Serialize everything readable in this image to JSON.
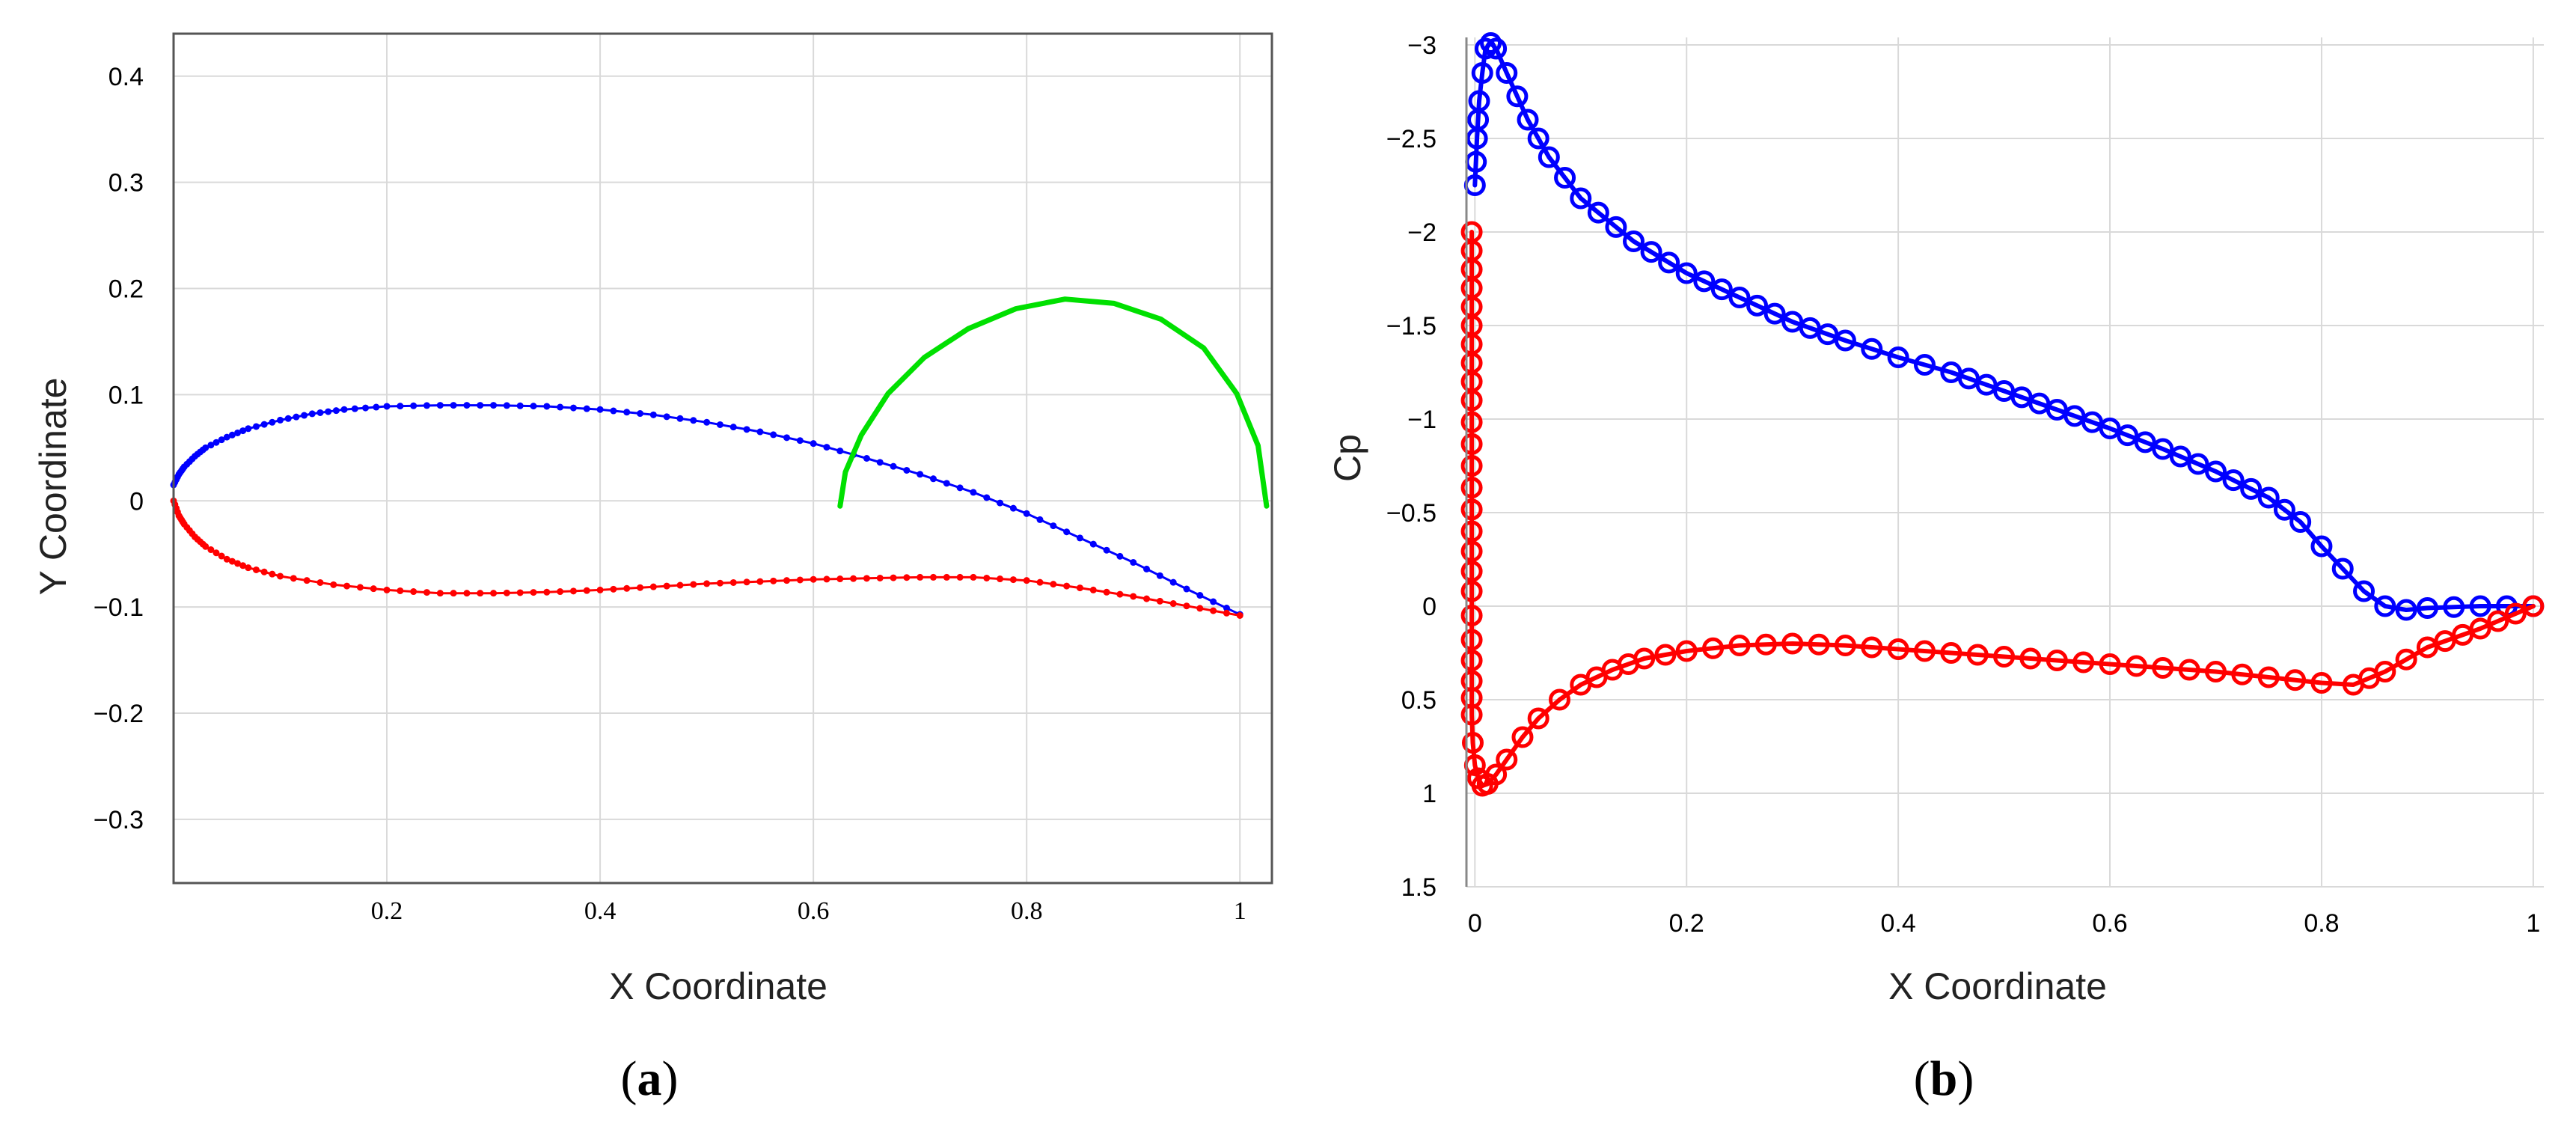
{
  "chart_data": [
    {
      "type": "line",
      "panel_label": "a",
      "xlabel": "X Coordinate",
      "ylabel": "Y Coordinate",
      "xlim": [
        0,
        1.03
      ],
      "ylim": [
        -0.36,
        0.44
      ],
      "xticks": [
        0.2,
        0.4,
        0.6,
        0.8,
        1
      ],
      "xtick_labels": [
        "0.2",
        "0.4",
        "0.6",
        "0.8",
        "1"
      ],
      "yticks": [
        0.4,
        0.3,
        0.2,
        0.1,
        0,
        -0.1,
        -0.2,
        -0.3
      ],
      "ytick_labels": [
        "0.4",
        "0.3",
        "0.2",
        "0.1",
        "0",
        "−0.1",
        "−0.2",
        "−0.3"
      ],
      "grid": true,
      "series": [
        {
          "color": "#0000ff",
          "marker": "dot",
          "x": [
            0,
            0.005,
            0.01,
            0.02,
            0.03,
            0.05,
            0.07,
            0.1,
            0.13,
            0.16,
            0.2,
            0.25,
            0.3,
            0.35,
            0.4,
            0.45,
            0.5,
            0.55,
            0.6,
            0.65,
            0.7,
            0.75,
            0.8,
            0.85,
            0.9,
            0.95,
            1
          ],
          "y": [
            0.015,
            0.025,
            0.032,
            0.042,
            0.05,
            0.06,
            0.068,
            0.076,
            0.082,
            0.086,
            0.089,
            0.09,
            0.09,
            0.089,
            0.086,
            0.081,
            0.074,
            0.065,
            0.054,
            0.04,
            0.025,
            0.008,
            -0.012,
            -0.035,
            -0.058,
            -0.083,
            -0.107
          ]
        },
        {
          "color": "#ff0000",
          "marker": "dot",
          "x": [
            0,
            0.005,
            0.01,
            0.02,
            0.03,
            0.05,
            0.07,
            0.1,
            0.15,
            0.2,
            0.25,
            0.3,
            0.35,
            0.4,
            0.45,
            0.5,
            0.55,
            0.6,
            0.65,
            0.7,
            0.75,
            0.8,
            0.85,
            0.9,
            0.95,
            1
          ],
          "y": [
            0,
            -0.014,
            -0.022,
            -0.034,
            -0.043,
            -0.055,
            -0.063,
            -0.071,
            -0.079,
            -0.084,
            -0.087,
            -0.087,
            -0.086,
            -0.084,
            -0.081,
            -0.078,
            -0.076,
            -0.074,
            -0.073,
            -0.072,
            -0.072,
            -0.075,
            -0.082,
            -0.09,
            -0.099,
            -0.108
          ]
        },
        {
          "color": "#00e000",
          "marker": "none",
          "x": [
            0.625,
            0.63,
            0.645,
            0.67,
            0.704,
            0.745,
            0.79,
            0.836,
            0.882,
            0.926,
            0.966,
            0.997,
            1.017,
            1.025
          ],
          "y": [
            -0.005,
            0.027,
            0.062,
            0.101,
            0.135,
            0.162,
            0.181,
            0.19,
            0.186,
            0.171,
            0.144,
            0.101,
            0.052,
            -0.005
          ]
        }
      ]
    },
    {
      "type": "scatter",
      "panel_label": "b",
      "xlabel": "X Coordinate",
      "ylabel": "Cp",
      "xlim": [
        -0.008,
        1.01
      ],
      "ylim": [
        1.5,
        -3.04
      ],
      "y_reversed": true,
      "xticks": [
        0,
        0.2,
        0.4,
        0.6,
        0.8,
        1
      ],
      "xtick_labels": [
        "0",
        "0.2",
        "0.4",
        "0.6",
        "0.8",
        "1"
      ],
      "yticks": [
        -3,
        -2.5,
        -2,
        -1.5,
        -1,
        -0.5,
        0,
        0.5,
        1,
        1.5
      ],
      "ytick_labels": [
        "−3",
        "−2.5",
        "−2",
        "−1.5",
        "−1",
        "−0.5",
        "0",
        "0.5",
        "1",
        "1.5"
      ],
      "grid": true,
      "series": [
        {
          "color": "#0000ff",
          "marker": "circle",
          "x": [
            0,
            0.002,
            0.004,
            0.007,
            0.01,
            0.015,
            0.02,
            0.03,
            0.05,
            0.07,
            0.1,
            0.15,
            0.2,
            0.25,
            0.3,
            0.35,
            0.4,
            0.45,
            0.5,
            0.55,
            0.6,
            0.65,
            0.7,
            0.75,
            0.78,
            0.8,
            0.82,
            0.84,
            0.86,
            0.88,
            0.9,
            0.95,
            1
          ],
          "y": [
            -2.25,
            -2.5,
            -2.7,
            -2.85,
            -2.98,
            -3.01,
            -2.98,
            -2.85,
            -2.6,
            -2.4,
            -2.18,
            -1.95,
            -1.78,
            -1.65,
            -1.52,
            -1.42,
            -1.33,
            -1.25,
            -1.15,
            -1.05,
            -0.95,
            -0.84,
            -0.72,
            -0.58,
            -0.45,
            -0.32,
            -0.2,
            -0.08,
            0.0,
            0.02,
            0.01,
            0.0,
            0.0
          ]
        },
        {
          "color": "#ff0000",
          "marker": "circle",
          "x": [
            -0.003,
            -0.003,
            -0.003,
            -0.003,
            -0.003,
            -0.003,
            -0.003,
            -0.003,
            -0.003,
            -0.003,
            -0.002,
            0,
            0.003,
            0.007,
            0.012,
            0.02,
            0.03,
            0.045,
            0.06,
            0.08,
            0.1,
            0.13,
            0.16,
            0.2,
            0.25,
            0.3,
            0.35,
            0.4,
            0.45,
            0.5,
            0.55,
            0.6,
            0.65,
            0.7,
            0.75,
            0.8,
            0.83,
            0.86,
            0.9,
            0.95,
            1
          ],
          "y": [
            -2.0,
            -1.7,
            -1.4,
            -1.1,
            -0.75,
            -0.4,
            -0.08,
            0.18,
            0.4,
            0.58,
            0.73,
            0.85,
            0.92,
            0.96,
            0.95,
            0.9,
            0.82,
            0.7,
            0.6,
            0.5,
            0.42,
            0.34,
            0.28,
            0.24,
            0.21,
            0.2,
            0.21,
            0.23,
            0.25,
            0.27,
            0.29,
            0.31,
            0.33,
            0.35,
            0.38,
            0.41,
            0.42,
            0.35,
            0.22,
            0.12,
            0.0
          ]
        }
      ]
    }
  ],
  "captions": {
    "a": "a",
    "b": "b"
  }
}
